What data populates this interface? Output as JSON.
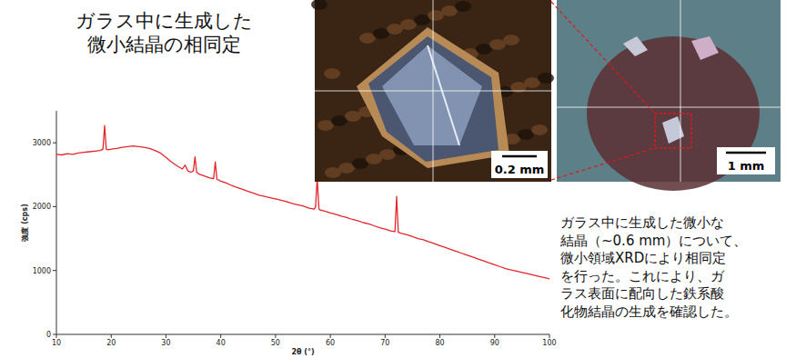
{
  "chart_data": {
    "type": "line",
    "x_label": "2θ (°)",
    "y_label": "強度 (cps)",
    "color": "#e3262b",
    "grid": false,
    "xlim": [
      10,
      100
    ],
    "ylim": [
      0,
      3500
    ],
    "xticks": [
      10,
      20,
      30,
      40,
      50,
      60,
      70,
      80,
      90,
      100
    ],
    "yticks": [
      0,
      1000,
      2000,
      3000
    ],
    "x": [
      10,
      11,
      12,
      13,
      14,
      15,
      16,
      17,
      18,
      18.5,
      18.8,
      19.1,
      19.5,
      20,
      21,
      22,
      23,
      24,
      25,
      26,
      27,
      28,
      29,
      30,
      31,
      32,
      33,
      33.5,
      34,
      34.5,
      35,
      35.3,
      35.6,
      36,
      37,
      38,
      38.7,
      39,
      39.3,
      40,
      41,
      42,
      43,
      44,
      45,
      46,
      47,
      48,
      49,
      50,
      51,
      52,
      53,
      54,
      55,
      56,
      57,
      57.3,
      57.6,
      57.9,
      58,
      59,
      60,
      61,
      62,
      63,
      64,
      65,
      66,
      67,
      68,
      69,
      70,
      71,
      71.8,
      72.1,
      72.4,
      73,
      74,
      75,
      76,
      77,
      78,
      79,
      80,
      81,
      82,
      83,
      84,
      85,
      86,
      87,
      88,
      89,
      90,
      91,
      92,
      93,
      94,
      95,
      96,
      97,
      98,
      99,
      100
    ],
    "values": [
      2820,
      2810,
      2830,
      2820,
      2840,
      2850,
      2860,
      2870,
      2880,
      2900,
      3270,
      2900,
      2890,
      2900,
      2910,
      2930,
      2940,
      2950,
      2940,
      2930,
      2910,
      2880,
      2840,
      2770,
      2700,
      2640,
      2590,
      2650,
      2560,
      2540,
      2560,
      2780,
      2540,
      2510,
      2480,
      2450,
      2440,
      2700,
      2430,
      2400,
      2370,
      2330,
      2300,
      2270,
      2240,
      2210,
      2180,
      2160,
      2140,
      2120,
      2100,
      2080,
      2050,
      2030,
      2010,
      1980,
      1960,
      1990,
      2450,
      1990,
      1950,
      1930,
      1900,
      1880,
      1850,
      1830,
      1800,
      1780,
      1750,
      1730,
      1700,
      1670,
      1650,
      1620,
      1610,
      2160,
      1600,
      1580,
      1560,
      1530,
      1500,
      1480,
      1450,
      1420,
      1390,
      1360,
      1330,
      1300,
      1270,
      1240,
      1210,
      1180,
      1150,
      1120,
      1090,
      1060,
      1030,
      1010,
      990,
      970,
      950,
      930,
      910,
      890,
      870
    ]
  },
  "slide": {
    "title_lines": [
      "ガラス中に生成した",
      "微小結晶の相同定"
    ],
    "caption_lines": [
      "ガラス中に生成した微小な",
      "結晶（~0.6 mm）について、",
      "微小領域XRDにより相同定",
      "を行った。これにより、ガ",
      "ラス表面に配向した鉄系酸",
      "化物結晶の生成を確認した。"
    ],
    "scale_bars": [
      "0.2 mm",
      "1 mm"
    ]
  }
}
